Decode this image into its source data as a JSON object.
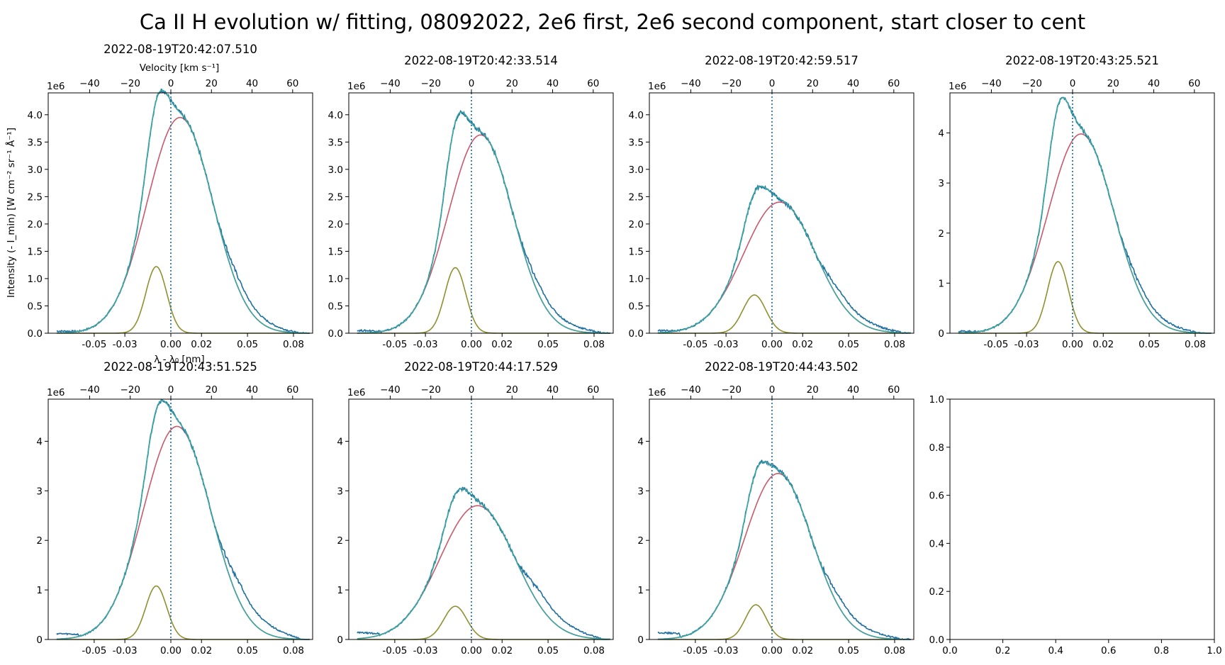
{
  "suptitle": "Ca II H evolution w/ fitting, 08092022, 2e6 first, 2e6 second component, start closer to cent",
  "xlabel": "λ - λ₀ [nm]",
  "ylabel": "Intensity (- I_min) [W cm⁻² sr⁻¹ Å⁻¹]",
  "top_axis_label": "Velocity [km s⁻¹]",
  "offset_text": "1e6",
  "colors": {
    "observed": "#1f6fa0",
    "total_fit": "#3aa6a0",
    "red_component": "#c85a6e",
    "olive_component": "#8f9030",
    "center_line": "#1f6fa0"
  },
  "chart_data": [
    {
      "type": "line",
      "title": "2022-08-19T20:42:07.510",
      "xlim": [
        -0.08,
        0.0925
      ],
      "ylim": [
        0,
        4.4
      ],
      "yticks": [
        0,
        0.5,
        1.0,
        1.5,
        2.0,
        2.5,
        3.0,
        3.5,
        4.0
      ],
      "y_tick_decimals": 1,
      "xticks": [
        -0.05,
        -0.03,
        0.0,
        0.02,
        0.05,
        0.08
      ],
      "xtick_labels": [
        "-0.05",
        "-0.03",
        "0.00",
        "0.02",
        "0.05",
        "0.08"
      ],
      "velocity_ticks": [
        -40,
        -20,
        0,
        20,
        40,
        60
      ],
      "velocity_per_nm": 755,
      "components": {
        "red": {
          "amp": 3.95,
          "center": 0.006,
          "sigma": 0.0215
        },
        "olive": {
          "amp": 1.22,
          "center": -0.0095,
          "sigma": 0.0068
        }
      },
      "observed_extra": {
        "wing_amp": 0.2,
        "wing_end": 0.083,
        "edge_value": 0.04
      }
    },
    {
      "type": "line",
      "title": "2022-08-19T20:42:33.514",
      "xlim": [
        -0.08,
        0.0925
      ],
      "ylim": [
        0,
        4.4
      ],
      "yticks": [
        0,
        0.5,
        1.0,
        1.5,
        2.0,
        2.5,
        3.0,
        3.5,
        4.0
      ],
      "y_tick_decimals": 1,
      "xticks": [
        -0.05,
        -0.03,
        0.0,
        0.02,
        0.05,
        0.08
      ],
      "xtick_labels": [
        "-0.05",
        "-0.03",
        "0.00",
        "0.02",
        "0.05",
        "0.08"
      ],
      "velocity_ticks": [
        -40,
        -20,
        0,
        20,
        40,
        60
      ],
      "velocity_per_nm": 755,
      "components": {
        "red": {
          "amp": 3.63,
          "center": 0.006,
          "sigma": 0.021
        },
        "olive": {
          "amp": 1.2,
          "center": -0.0105,
          "sigma": 0.0068
        }
      },
      "observed_extra": {
        "wing_amp": 0.2,
        "wing_end": 0.086,
        "edge_value": 0.05
      }
    },
    {
      "type": "line",
      "title": "2022-08-19T20:42:59.517",
      "xlim": [
        -0.08,
        0.0925
      ],
      "ylim": [
        0,
        4.4
      ],
      "yticks": [
        0,
        0.5,
        1.0,
        1.5,
        2.0,
        2.5,
        3.0,
        3.5,
        4.0
      ],
      "y_tick_decimals": 1,
      "xticks": [
        -0.05,
        -0.03,
        0.0,
        0.02,
        0.05,
        0.08
      ],
      "xtick_labels": [
        "-0.05",
        "-0.03",
        "0.00",
        "0.02",
        "0.05",
        "0.08"
      ],
      "velocity_ticks": [
        -40,
        -20,
        0,
        20,
        40,
        60
      ],
      "velocity_per_nm": 755,
      "components": {
        "red": {
          "amp": 2.4,
          "center": 0.005,
          "sigma": 0.0235
        },
        "olive": {
          "amp": 0.7,
          "center": -0.0115,
          "sigma": 0.0075
        }
      },
      "observed_extra": {
        "wing_amp": 0.18,
        "wing_end": 0.086,
        "edge_value": 0.05
      }
    },
    {
      "type": "line",
      "title": "2022-08-19T20:43:25.521",
      "xlim": [
        -0.08,
        0.0925
      ],
      "ylim": [
        0,
        4.8
      ],
      "yticks": [
        0,
        1,
        2,
        3,
        4
      ],
      "y_tick_decimals": 0,
      "xticks": [
        -0.05,
        -0.03,
        0.0,
        0.02,
        0.05,
        0.08
      ],
      "xtick_labels": [
        "-0.05",
        "-0.03",
        "0.00",
        "0.02",
        "0.05",
        "0.08"
      ],
      "velocity_ticks": [
        -40,
        -20,
        0,
        20,
        40,
        60
      ],
      "velocity_per_nm": 755,
      "components": {
        "red": {
          "amp": 3.98,
          "center": 0.0055,
          "sigma": 0.0215
        },
        "olive": {
          "amp": 1.43,
          "center": -0.0095,
          "sigma": 0.0068
        }
      },
      "observed_extra": {
        "wing_amp": 0.18,
        "wing_end": 0.083,
        "edge_value": 0.04
      }
    },
    {
      "type": "line",
      "title": "2022-08-19T20:43:51.525",
      "xlim": [
        -0.08,
        0.0925
      ],
      "ylim": [
        0,
        4.85
      ],
      "yticks": [
        0,
        1,
        2,
        3,
        4
      ],
      "y_tick_decimals": 0,
      "xticks": [
        -0.05,
        -0.03,
        0.0,
        0.02,
        0.05,
        0.08
      ],
      "xtick_labels": [
        "-0.05",
        "-0.03",
        "0.00",
        "0.02",
        "0.05",
        "0.08"
      ],
      "velocity_ticks": [
        -40,
        -20,
        0,
        20,
        40,
        60
      ],
      "velocity_per_nm": 755,
      "components": {
        "red": {
          "amp": 4.3,
          "center": 0.004,
          "sigma": 0.022
        },
        "olive": {
          "amp": 1.08,
          "center": -0.0095,
          "sigma": 0.0068
        }
      },
      "observed_extra": {
        "wing_amp": 0.38,
        "wing_end": 0.085,
        "edge_value": 0.12
      }
    },
    {
      "type": "line",
      "title": "2022-08-19T20:44:17.529",
      "xlim": [
        -0.08,
        0.0925
      ],
      "ylim": [
        0,
        4.85
      ],
      "yticks": [
        0,
        1,
        2,
        3,
        4
      ],
      "y_tick_decimals": 0,
      "xticks": [
        -0.05,
        -0.03,
        0.0,
        0.02,
        0.05,
        0.08
      ],
      "xtick_labels": [
        "-0.05",
        "-0.03",
        "0.00",
        "0.02",
        "0.05",
        "0.08"
      ],
      "velocity_ticks": [
        -40,
        -20,
        0,
        20,
        40,
        60
      ],
      "velocity_per_nm": 755,
      "components": {
        "red": {
          "amp": 2.7,
          "center": 0.004,
          "sigma": 0.0245
        },
        "olive": {
          "amp": 0.67,
          "center": -0.0105,
          "sigma": 0.0075
        }
      },
      "observed_extra": {
        "wing_amp": 0.3,
        "wing_end": 0.085,
        "edge_value": 0.14
      }
    },
    {
      "type": "line",
      "title": "2022-08-19T20:44:43.502",
      "xlim": [
        -0.08,
        0.0925
      ],
      "ylim": [
        0,
        4.85
      ],
      "yticks": [
        0,
        1,
        2,
        3,
        4
      ],
      "y_tick_decimals": 0,
      "xticks": [
        -0.05,
        -0.03,
        0.0,
        0.02,
        0.05,
        0.08
      ],
      "xtick_labels": [
        "-0.05",
        "-0.03",
        "0.00",
        "0.02",
        "0.05",
        "0.08"
      ],
      "velocity_ticks": [
        -40,
        -20,
        0,
        20,
        40,
        60
      ],
      "velocity_per_nm": 755,
      "components": {
        "red": {
          "amp": 3.35,
          "center": 0.004,
          "sigma": 0.022
        },
        "olive": {
          "amp": 0.7,
          "center": -0.0105,
          "sigma": 0.0068
        }
      },
      "observed_extra": {
        "wing_amp": 0.22,
        "wing_end": 0.085,
        "edge_value": 0.14
      }
    },
    {
      "type": "line",
      "title": "",
      "empty": true,
      "xlim": [
        0,
        1
      ],
      "ylim": [
        0,
        1
      ],
      "xticks": [
        0,
        0.2,
        0.4,
        0.6,
        0.8,
        1.0
      ],
      "xtick_labels": [
        "0.0",
        "0.2",
        "0.4",
        "0.6",
        "0.8",
        "1.0"
      ],
      "yticks": [
        0,
        0.2,
        0.4,
        0.6,
        0.8,
        1.0
      ],
      "y_tick_decimals": 1
    }
  ]
}
